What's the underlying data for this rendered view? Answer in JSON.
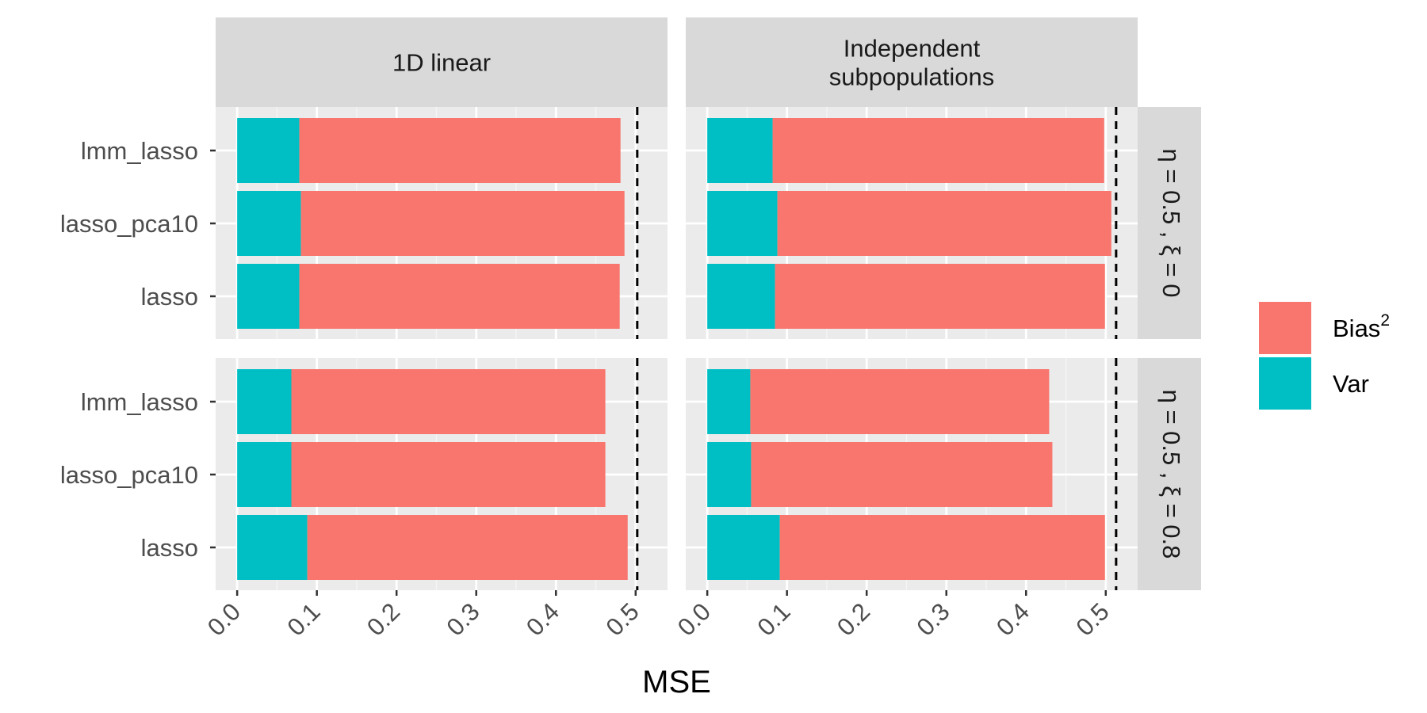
{
  "chart_data": {
    "type": "bar",
    "orientation": "horizontal",
    "stacked": true,
    "xlabel": "MSE",
    "ylabel": "",
    "xlim": [
      -0.027,
      0.54
    ],
    "x_ticks": [
      "0.0",
      "0.1",
      "0.2",
      "0.3",
      "0.4",
      "0.5"
    ],
    "x_tick_values": [
      0,
      0.1,
      0.2,
      0.3,
      0.4,
      0.5
    ],
    "categories": [
      "lmm_lasso",
      "lasso_pca10",
      "lasso"
    ],
    "grid": true,
    "legend_position": "right",
    "legend": [
      {
        "key": "bias",
        "label": "Bias",
        "superscript": "2",
        "color": "#F8766D"
      },
      {
        "key": "var",
        "label": "Var",
        "color": "#00BFC4"
      }
    ],
    "columns": [
      "1D linear",
      "Independent subpopulations"
    ],
    "column_label_lines": [
      [
        "1D linear"
      ],
      [
        "Independent",
        "subpopulations"
      ]
    ],
    "rows": [
      "η = 0.5 ,  ξ = 0",
      "η = 0.5 ,  ξ = 0.8"
    ],
    "panels": [
      {
        "column": "1D linear",
        "row": "η = 0.5 ,  ξ = 0",
        "reference_line": 0.502,
        "series": [
          {
            "name": "Var",
            "values": [
              0.078,
              0.08,
              0.078
            ]
          },
          {
            "name": "Bias2",
            "values": [
              0.403,
              0.406,
              0.402
            ]
          }
        ]
      },
      {
        "column": "Independent subpopulations",
        "row": "η = 0.5 ,  ξ = 0",
        "reference_line": 0.513,
        "series": [
          {
            "name": "Var",
            "values": [
              0.082,
              0.088,
              0.085
            ]
          },
          {
            "name": "Bias2",
            "values": [
              0.416,
              0.419,
              0.414
            ]
          }
        ]
      },
      {
        "column": "1D linear",
        "row": "η = 0.5 ,  ξ = 0.8",
        "reference_line": 0.502,
        "series": [
          {
            "name": "Var",
            "values": [
              0.068,
              0.068,
              0.088
            ]
          },
          {
            "name": "Bias2",
            "values": [
              0.394,
              0.394,
              0.402
            ]
          }
        ]
      },
      {
        "column": "Independent subpopulations",
        "row": "η = 0.5 ,  ξ = 0.8",
        "reference_line": 0.513,
        "series": [
          {
            "name": "Var",
            "values": [
              0.054,
              0.055,
              0.091
            ]
          },
          {
            "name": "Bias2",
            "values": [
              0.375,
              0.378,
              0.408
            ]
          }
        ]
      }
    ]
  }
}
